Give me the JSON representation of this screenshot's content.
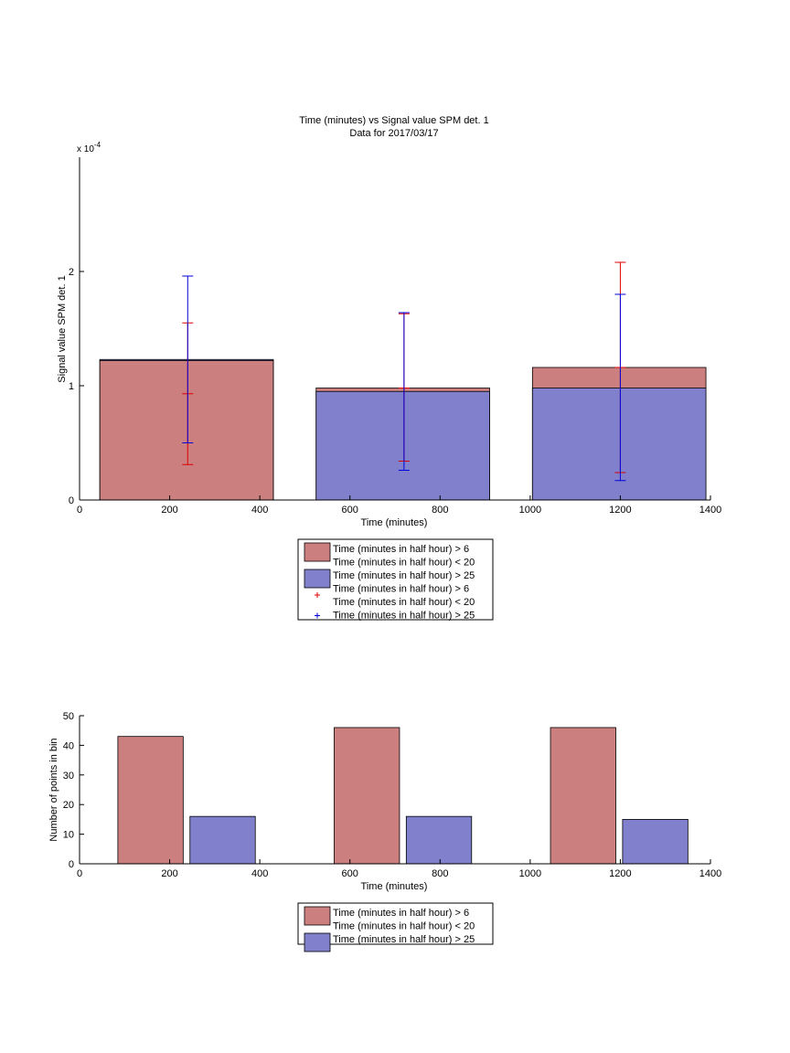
{
  "colors": {
    "red_fill": "#cc7f7f",
    "blue_fill": "#8080cc",
    "red_err": "#dd0000",
    "blue_err": "#0000dd",
    "axis": "#000000"
  },
  "chart_data": [
    {
      "type": "bar",
      "title": "Time (minutes) vs Signal value SPM det. 1",
      "subtitle": "Data for 2017/03/17",
      "xlabel": "Time (minutes)",
      "ylabel": "Signal value SPM det. 1",
      "y_exponent_label": "x 10",
      "y_exponent_power": "-4",
      "xlim": [
        0,
        1400
      ],
      "ylim": [
        0,
        3
      ],
      "x_ticks": [
        "0",
        "200",
        "400",
        "600",
        "800",
        "1000",
        "1200",
        "1400"
      ],
      "y_ticks": [
        "0",
        "1",
        "2"
      ],
      "bins": [
        {
          "x_start": 45,
          "x_end": 430,
          "center": 240
        },
        {
          "x_start": 525,
          "x_end": 910,
          "center": 720
        },
        {
          "x_start": 1005,
          "x_end": 1390,
          "center": 1200
        }
      ],
      "series": [
        {
          "name_line1": "Time (minutes in half hour) > 6",
          "name_line2": "Time (minutes in half hour) < 20",
          "values": [
            1.22,
            0.98,
            1.16
          ],
          "err_low": [
            0.31,
            0.34,
            0.24
          ],
          "err_high": [
            1.55,
            1.63,
            2.08
          ],
          "err_mid": [
            0.93,
            0.98,
            1.16
          ]
        },
        {
          "name": "Time (minutes in half hour) > 25",
          "values": [
            1.23,
            0.95,
            0.98
          ],
          "err_low": [
            0.5,
            0.26,
            0.17
          ],
          "err_high": [
            1.96,
            1.64,
            1.8
          ]
        }
      ],
      "legend": {
        "placement": "below",
        "entries": [
          {
            "kind": "patch",
            "color": "red",
            "line1": "Time (minutes in half hour) > 6",
            "line2": "Time (minutes in half hour) < 20"
          },
          {
            "kind": "patch",
            "color": "blue",
            "line1": "Time (minutes in half hour) > 25"
          },
          {
            "kind": "marker",
            "color": "red",
            "line1": "Time (minutes in half hour) > 6",
            "line2": "Time (minutes in half hour) < 20"
          },
          {
            "kind": "marker",
            "color": "blue",
            "line1": "Time (minutes in half hour) > 25"
          }
        ]
      }
    },
    {
      "type": "bar",
      "xlabel": "Time (minutes)",
      "ylabel": "Number of points in bin",
      "xlim": [
        0,
        1400
      ],
      "ylim": [
        0,
        50
      ],
      "x_ticks": [
        "0",
        "200",
        "400",
        "600",
        "800",
        "1000",
        "1200",
        "1400"
      ],
      "y_ticks": [
        "0",
        "10",
        "20",
        "30",
        "40",
        "50"
      ],
      "bars": [
        {
          "series": 0,
          "x_start": 85,
          "x_end": 230,
          "value": 43
        },
        {
          "series": 1,
          "x_start": 245,
          "x_end": 390,
          "value": 16
        },
        {
          "series": 0,
          "x_start": 565,
          "x_end": 710,
          "value": 46
        },
        {
          "series": 1,
          "x_start": 725,
          "x_end": 870,
          "value": 16
        },
        {
          "series": 0,
          "x_start": 1045,
          "x_end": 1190,
          "value": 46
        },
        {
          "series": 1,
          "x_start": 1205,
          "x_end": 1350,
          "value": 15
        }
      ],
      "legend": {
        "placement": "below",
        "entries": [
          {
            "kind": "patch",
            "color": "red",
            "line1": "Time (minutes in half hour) > 6",
            "line2": "Time (minutes in half hour) < 20"
          },
          {
            "kind": "patch",
            "color": "blue",
            "line1": "Time (minutes in half hour) > 25"
          }
        ]
      }
    }
  ]
}
